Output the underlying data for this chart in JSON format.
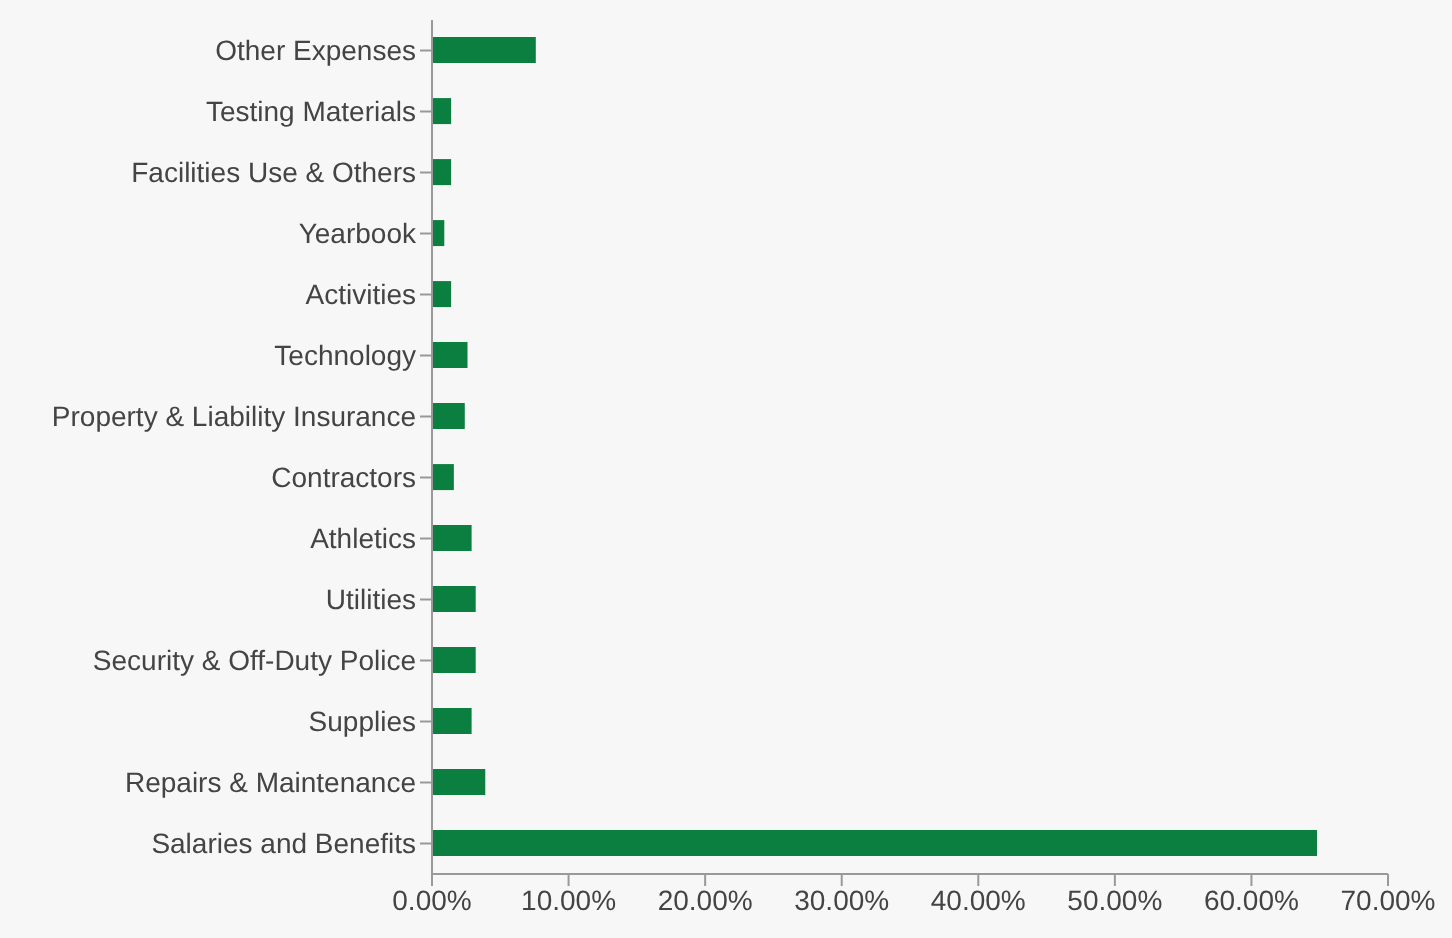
{
  "chart_data": {
    "type": "bar",
    "orientation": "horizontal",
    "categories": [
      "Other Expenses",
      "Testing Materials",
      "Facilities Use & Others",
      "Yearbook",
      "Activities",
      "Technology",
      "Property & Liability Insurance",
      "Contractors",
      "Athletics",
      "Utilities",
      "Security & Off-Duty Police",
      "Supplies",
      "Repairs & Maintenance",
      "Salaries and Benefits"
    ],
    "values": [
      7.6,
      1.4,
      1.4,
      0.9,
      1.4,
      2.6,
      2.4,
      1.6,
      2.9,
      3.2,
      3.2,
      2.9,
      3.9,
      64.8
    ],
    "color": "#0a7f3f",
    "xlim": [
      0,
      70
    ],
    "xticks": [
      {
        "value": 0,
        "label": "0.00%"
      },
      {
        "value": 10,
        "label": "10.00%"
      },
      {
        "value": 20,
        "label": "20.00%"
      },
      {
        "value": 30,
        "label": "30.00%"
      },
      {
        "value": 40,
        "label": "40.00%"
      },
      {
        "value": 50,
        "label": "50.00%"
      },
      {
        "value": 60,
        "label": "60.00%"
      },
      {
        "value": 70,
        "label": "70.00%"
      }
    ],
    "grid": false,
    "legend": false
  }
}
